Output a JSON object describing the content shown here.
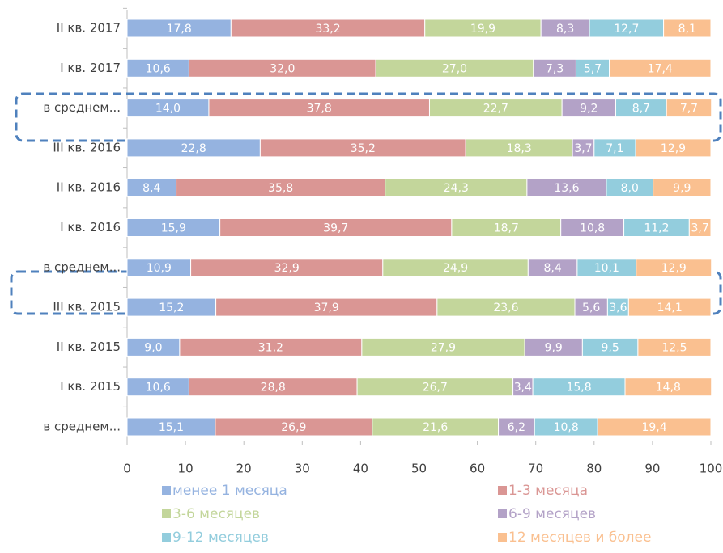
{
  "chart_data": {
    "type": "stacked-bar-horizontal",
    "categories": [
      "II кв. 2017",
      "I кв. 2017",
      "в среднем...",
      "III кв. 2016",
      "II кв. 2016",
      "I кв. 2016",
      "в среднем...",
      "III кв. 2015",
      "II кв. 2015",
      "I кв. 2015",
      "в среднем..."
    ],
    "series": [
      {
        "name": "менее 1 месяца",
        "color": "#95b3e0",
        "values": [
          17.8,
          10.6,
          14.0,
          22.8,
          8.4,
          15.9,
          10.9,
          15.2,
          9.0,
          10.6,
          15.1
        ],
        "value_labels": [
          "17,8",
          "10,6",
          "14,0",
          "22,8",
          "8,4",
          "15,9",
          "10,9",
          "15,2",
          "9,0",
          "10,6",
          "15,1"
        ]
      },
      {
        "name": "1-3 месяца",
        "color": "#da9694",
        "values": [
          33.2,
          32.0,
          37.8,
          35.2,
          35.8,
          39.7,
          32.9,
          37.9,
          31.2,
          28.8,
          26.9
        ],
        "value_labels": [
          "33,2",
          "32,0",
          "37,8",
          "35,2",
          "35,8",
          "39,7",
          "32,9",
          "37,9",
          "31,2",
          "28,8",
          "26,9"
        ]
      },
      {
        "name": "3-6 месяцев",
        "color": "#c3d69b",
        "values": [
          19.9,
          27.0,
          22.7,
          18.3,
          24.3,
          18.7,
          24.9,
          23.6,
          27.9,
          26.7,
          21.6
        ],
        "value_labels": [
          "19,9",
          "27,0",
          "22,7",
          "18,3",
          "24,3",
          "18,7",
          "24,9",
          "23,6",
          "27,9",
          "26,7",
          "21,6"
        ]
      },
      {
        "name": "6-9 месяцев",
        "color": "#b3a2c7",
        "values": [
          8.3,
          7.3,
          9.2,
          3.7,
          13.6,
          10.8,
          8.4,
          5.6,
          9.9,
          3.4,
          6.2
        ],
        "value_labels": [
          "8,3",
          "7,3",
          "9,2",
          "3,7",
          "13,6",
          "10,8",
          "8,4",
          "5,6",
          "9,9",
          "3,4",
          "6,2"
        ]
      },
      {
        "name": "9-12 месяцев",
        "color": "#93cddd",
        "values": [
          12.7,
          5.7,
          8.7,
          7.1,
          8.0,
          11.2,
          10.1,
          3.6,
          9.5,
          15.8,
          10.8
        ],
        "value_labels": [
          "12,7",
          "5,7",
          "8,7",
          "7,1",
          "8,0",
          "11,2",
          "10,1",
          "3,6",
          "9,5",
          "15,8",
          "10,8"
        ]
      },
      {
        "name": "12 месяцев и более",
        "color": "#fac090",
        "values": [
          8.1,
          17.4,
          7.7,
          12.9,
          9.9,
          3.7,
          12.9,
          14.1,
          12.5,
          14.8,
          19.4
        ],
        "value_labels": [
          "8,1",
          "17,4",
          "7,7",
          "12,9",
          "9,9",
          "3,7",
          "12,9",
          "14,1",
          "12,5",
          "14,8",
          "19,4"
        ]
      }
    ],
    "xlim": [
      0,
      100
    ],
    "xticks": [
      0,
      10,
      20,
      30,
      40,
      50,
      60,
      70,
      80,
      90,
      100
    ]
  }
}
